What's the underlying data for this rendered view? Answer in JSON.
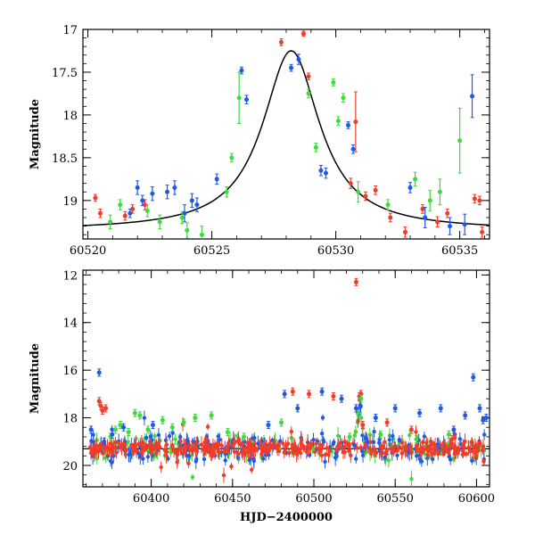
{
  "chart_data": [
    {
      "type": "scatter",
      "xlabel": "",
      "ylabel": "Magnitude",
      "xlim": [
        60519.8,
        60536.2
      ],
      "ylim": [
        19.45,
        17.0
      ],
      "y_inverted": true,
      "xticks": [
        60520,
        60525,
        60530,
        60535
      ],
      "yticks": [
        17,
        17.5,
        18,
        18.5,
        19
      ],
      "ytick_labels": [
        "17",
        "17.5",
        "18",
        "18.5",
        "19"
      ],
      "grid": false,
      "colors": {
        "red": "#f03c28",
        "green": "#3cdc3c",
        "blue": "#1e5ae6",
        "model": "#000000"
      },
      "model_curve": {
        "type": "lorentzian",
        "t0": 60528.2,
        "peak": 17.25,
        "base": 19.35,
        "width": 1.4
      },
      "series": [
        {
          "color": "red",
          "points": [
            [
              60520.3,
              18.97,
              0.04
            ],
            [
              60520.5,
              19.15,
              0.05
            ],
            [
              60521.5,
              19.18,
              0.05
            ],
            [
              60521.8,
              19.1,
              0.05
            ],
            [
              60522.3,
              19.05,
              0.06
            ],
            [
              60527.8,
              17.15,
              0.04
            ],
            [
              60528.7,
              17.05,
              0.03
            ],
            [
              60528.9,
              17.55,
              0.04
            ],
            [
              60530.6,
              18.8,
              0.06
            ],
            [
              60530.8,
              18.08,
              0.35
            ],
            [
              60531.2,
              18.95,
              0.05
            ],
            [
              60531.6,
              18.88,
              0.05
            ],
            [
              60532.2,
              19.2,
              0.05
            ],
            [
              60532.8,
              19.37,
              0.06
            ],
            [
              60533.5,
              19.1,
              0.05
            ],
            [
              60534.1,
              19.25,
              0.06
            ],
            [
              60534.5,
              19.15,
              0.05
            ],
            [
              60535.6,
              18.98,
              0.05
            ],
            [
              60535.8,
              19.0,
              0.05
            ],
            [
              60535.9,
              19.37,
              0.06
            ]
          ]
        },
        {
          "color": "green",
          "points": [
            [
              60520.9,
              19.25,
              0.08
            ],
            [
              60521.3,
              19.05,
              0.06
            ],
            [
              60522.4,
              19.12,
              0.07
            ],
            [
              60522.9,
              19.25,
              0.08
            ],
            [
              60523.8,
              19.2,
              0.07
            ],
            [
              60524.0,
              19.35,
              0.09
            ],
            [
              60524.6,
              19.4,
              0.1
            ],
            [
              60525.6,
              18.9,
              0.06
            ],
            [
              60525.8,
              18.5,
              0.05
            ],
            [
              60526.1,
              17.8,
              0.3
            ],
            [
              60528.9,
              17.75,
              0.05
            ],
            [
              60529.2,
              18.38,
              0.05
            ],
            [
              60529.9,
              17.62,
              0.04
            ],
            [
              60530.1,
              18.07,
              0.05
            ],
            [
              60530.3,
              17.8,
              0.05
            ],
            [
              60530.9,
              18.9,
              0.12
            ],
            [
              60532.1,
              19.05,
              0.06
            ],
            [
              60533.2,
              18.75,
              0.08
            ],
            [
              60533.8,
              19.0,
              0.12
            ],
            [
              60534.2,
              18.9,
              0.15
            ],
            [
              60535.0,
              18.3,
              0.38
            ]
          ]
        },
        {
          "color": "blue",
          "points": [
            [
              60521.7,
              19.15,
              0.05
            ],
            [
              60522.0,
              18.85,
              0.08
            ],
            [
              60522.2,
              19.0,
              0.06
            ],
            [
              60522.6,
              18.92,
              0.08
            ],
            [
              60523.2,
              18.9,
              0.08
            ],
            [
              60523.5,
              18.85,
              0.08
            ],
            [
              60523.9,
              19.15,
              0.1
            ],
            [
              60524.2,
              19.0,
              0.08
            ],
            [
              60524.4,
              19.05,
              0.08
            ],
            [
              60525.2,
              18.75,
              0.06
            ],
            [
              60526.2,
              17.48,
              0.04
            ],
            [
              60526.4,
              17.82,
              0.05
            ],
            [
              60528.2,
              17.45,
              0.04
            ],
            [
              60528.5,
              17.35,
              0.06
            ],
            [
              60529.4,
              18.65,
              0.06
            ],
            [
              60529.6,
              18.68,
              0.06
            ],
            [
              60530.5,
              18.12,
              0.04
            ],
            [
              60530.7,
              18.4,
              0.05
            ],
            [
              60533.0,
              18.85,
              0.06
            ],
            [
              60533.6,
              19.2,
              0.12
            ],
            [
              60534.6,
              19.3,
              0.1
            ],
            [
              60535.2,
              19.28,
              0.12
            ],
            [
              60535.5,
              17.78,
              0.25
            ]
          ]
        }
      ]
    },
    {
      "type": "scatter",
      "xlabel": "HJD−2400000",
      "ylabel": "Magnitude",
      "xlim": [
        60358,
        60608
      ],
      "ylim": [
        20.9,
        11.8
      ],
      "y_inverted": true,
      "xticks": [
        60400,
        60450,
        60500,
        60550,
        60600
      ],
      "yticks": [
        12,
        14,
        16,
        18,
        20
      ],
      "grid": false,
      "baseline_mag": 19.3,
      "colors": {
        "red": "#f03c28",
        "green": "#3cdc3c",
        "blue": "#1e5ae6",
        "model": "#000000"
      },
      "series": [
        {
          "color": "red",
          "points": [
            [
              60368,
              17.3
            ],
            [
              60369,
              17.5
            ],
            [
              60370,
              17.7
            ],
            [
              60372,
              17.6
            ],
            [
              60487,
              16.9
            ],
            [
              60497,
              17.0
            ],
            [
              60512,
              17.1
            ],
            [
              60526,
              12.3
            ],
            [
              60528,
              17.1
            ],
            [
              60529,
              17.0
            ],
            [
              60530,
              18.3
            ],
            [
              60545,
              18.2
            ],
            [
              60560,
              18.5
            ],
            [
              60585,
              18.9
            ]
          ]
        },
        {
          "color": "green",
          "points": [
            [
              60375,
              18.8
            ],
            [
              60378,
              18.5
            ],
            [
              60381,
              18.3
            ],
            [
              60386,
              18.6
            ],
            [
              60390,
              17.8
            ],
            [
              60393,
              17.9
            ],
            [
              60398,
              18.5
            ],
            [
              60407,
              18.1
            ],
            [
              60413,
              18.4
            ],
            [
              60420,
              18.2
            ],
            [
              60427,
              18.0
            ],
            [
              60437,
              17.9
            ],
            [
              60447,
              18.6
            ],
            [
              60457,
              18.8
            ],
            [
              60480,
              18.2
            ],
            [
              60522,
              18.8
            ],
            [
              60527,
              17.8
            ],
            [
              60529,
              17.2
            ],
            [
              60541,
              18.7
            ],
            [
              60563,
              18.9
            ],
            [
              60583,
              18.7
            ]
          ]
        },
        {
          "color": "blue",
          "points": [
            [
              60363,
              18.5
            ],
            [
              60368,
              16.1
            ],
            [
              60371,
              19.0
            ],
            [
              60376,
              18.7
            ],
            [
              60383,
              18.4
            ],
            [
              60401,
              18.3
            ],
            [
              60472,
              18.3
            ],
            [
              60482,
              17.0
            ],
            [
              60490,
              17.6
            ],
            [
              60505,
              16.9
            ],
            [
              60517,
              17.2
            ],
            [
              60526,
              17.6
            ],
            [
              60538,
              18.0
            ],
            [
              60550,
              17.6
            ],
            [
              60565,
              17.8
            ],
            [
              60578,
              17.6
            ],
            [
              60586,
              18.5
            ],
            [
              60593,
              17.9
            ],
            [
              60598,
              16.3
            ],
            [
              60602,
              17.6
            ],
            [
              60604,
              18.1
            ],
            [
              60606,
              18.0
            ]
          ]
        }
      ],
      "noise_model": {
        "description": "dense scatter around baseline",
        "count_per_color": {
          "red": 380,
          "green": 100,
          "blue": 200
        }
      }
    }
  ]
}
